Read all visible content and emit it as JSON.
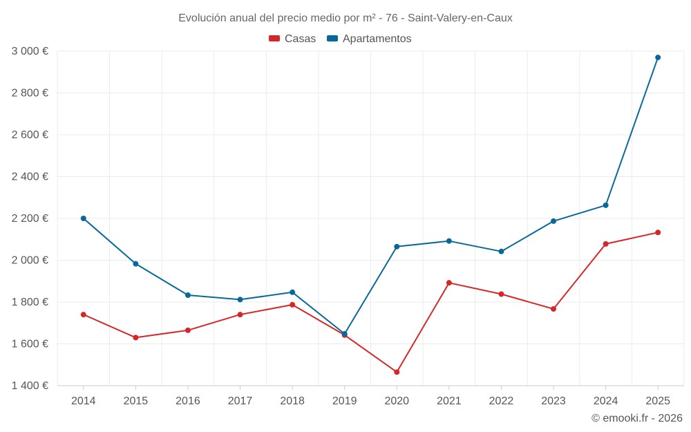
{
  "chart_data": {
    "type": "line",
    "title": "Evolución anual del precio medio por m² - 76 - Saint-Valery-en-Caux",
    "categories": [
      "2014",
      "2015",
      "2016",
      "2017",
      "2018",
      "2019",
      "2020",
      "2021",
      "2022",
      "2023",
      "2024",
      "2025"
    ],
    "series": [
      {
        "name": "Casas",
        "color": "#d62728",
        "values": [
          1740,
          1630,
          1665,
          1740,
          1787,
          1642,
          1465,
          1892,
          1838,
          1767,
          2078,
          2133
        ]
      },
      {
        "name": "Apartamentos",
        "color": "#08689a",
        "values": [
          2200,
          1983,
          1833,
          1812,
          1847,
          1648,
          2065,
          2092,
          2042,
          2187,
          2263,
          2970
        ]
      }
    ],
    "ylim": [
      1400,
      3000
    ],
    "yticks": [
      1400,
      1600,
      1800,
      2000,
      2200,
      2400,
      2600,
      2800,
      3000
    ],
    "ytick_labels": [
      "1 400 €",
      "1 600 €",
      "1 800 €",
      "2 000 €",
      "2 200 €",
      "2 400 €",
      "2 600 €",
      "2 800 €",
      "3 000 €"
    ],
    "xlabel": "",
    "ylabel": "",
    "grid": true,
    "legend_position": "top-center"
  },
  "credit": "© emooki.fr - 2026",
  "colors": {
    "grid": "#ebebeb",
    "axis_text": "#555555",
    "title_text": "#666666"
  }
}
